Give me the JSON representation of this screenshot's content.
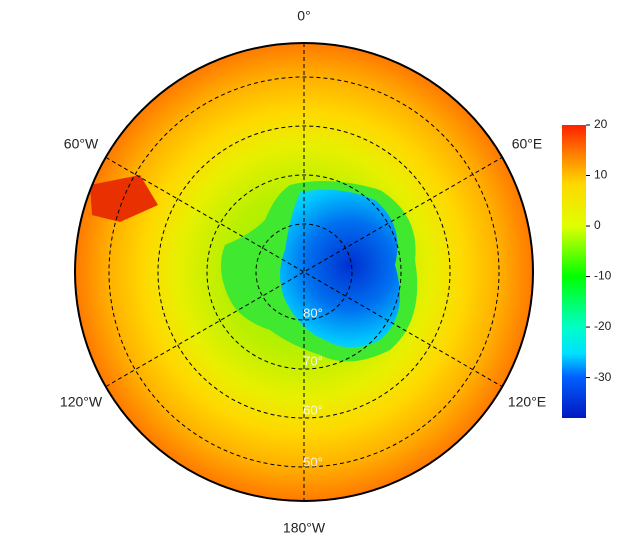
{
  "map": {
    "longitude_labels": [
      "0°",
      "60°E",
      "120°E",
      "180°W",
      "120°W",
      "60°W"
    ],
    "latitude_labels": [
      "80°",
      "70°",
      "60°",
      "50°"
    ]
  },
  "colorbar": {
    "range": [
      -38,
      20
    ],
    "ticks": [
      20,
      10,
      0,
      -10,
      -20,
      -30
    ]
  }
}
